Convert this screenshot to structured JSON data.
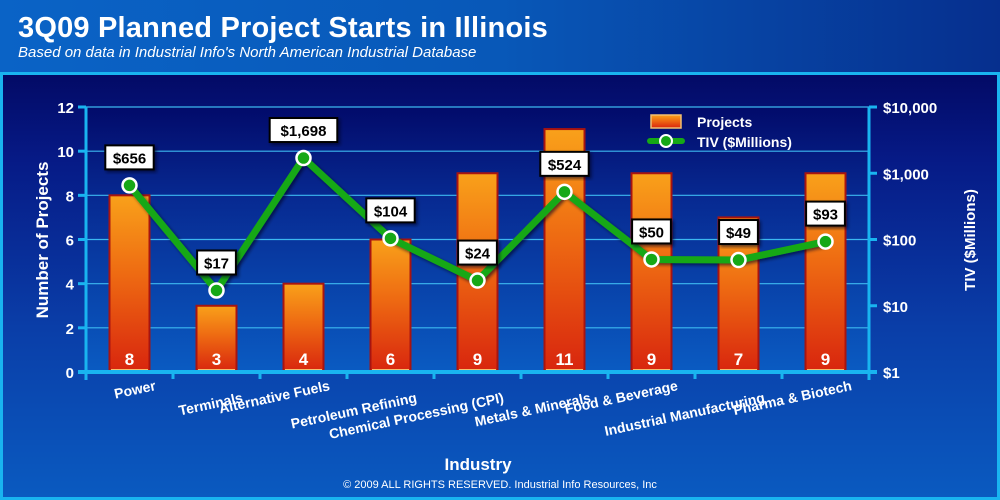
{
  "header": {
    "title": "3Q09 Planned Project Starts in Illinois",
    "subtitle": "Based on data in Industrial Info's North American Industrial Database"
  },
  "footer": {
    "copyright": "© 2009 ALL RIGHTS RESERVED. Industrial Info Resources, Inc"
  },
  "colors": {
    "background": "#0858b8",
    "plot_dark": "#030a66",
    "axis": "#19b4f0",
    "bar_top": "#f9a11a",
    "bar_bottom": "#d8250e",
    "bar_border": "#a01010",
    "line": "#16a816",
    "text": "#ffffff"
  },
  "chart_data": {
    "type": "bar",
    "title": "3Q09 Planned Project Starts in Illinois",
    "subtitle": "Based on data in Industrial Info's North American Industrial Database",
    "xlabel": "Industry",
    "ylabel": "Number of Projects",
    "y2label": "TIV ($Millions)",
    "ylim": [
      0,
      12
    ],
    "yticks": [
      "0",
      "2",
      "4",
      "6",
      "8",
      "10",
      "12"
    ],
    "y2lim": [
      1,
      10000
    ],
    "y2scale": "log",
    "y2ticks": [
      "$1",
      "$10",
      "$100",
      "$1,000",
      "$10,000"
    ],
    "grid": true,
    "legend": "top-right",
    "categories": [
      "Power",
      "Terminals",
      "Alternative Fuels",
      "Petroleum Refining",
      "Chemical Processing (CPI)",
      "Metals & Minerals",
      "Food & Beverage",
      "Industrial Manufacturing",
      "Pharma & Biotech"
    ],
    "series": [
      {
        "name": "Projects",
        "type": "bar",
        "axis": "left",
        "values": [
          8,
          3,
          4,
          6,
          9,
          11,
          9,
          7,
          9
        ],
        "labels": [
          "8",
          "3",
          "4",
          "6",
          "9",
          "11",
          "9",
          "7",
          "9"
        ]
      },
      {
        "name": "TIV ($Millions)",
        "type": "line",
        "axis": "right",
        "values": [
          656,
          17,
          1698,
          104,
          24,
          524,
          50,
          49,
          93
        ],
        "labels": [
          "$656",
          "$17",
          "$1,698",
          "$104",
          "$24",
          "$524",
          "$50",
          "$49",
          "$93"
        ]
      }
    ]
  }
}
